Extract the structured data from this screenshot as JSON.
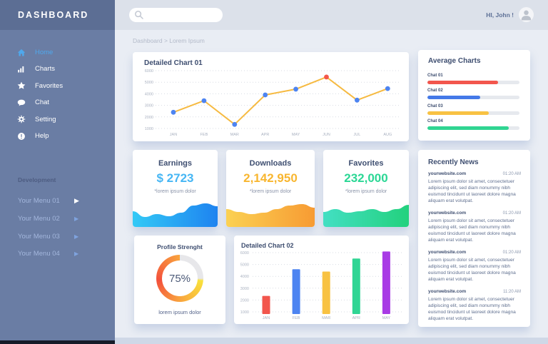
{
  "sidebar": {
    "title": "DASHBOARD",
    "nav": [
      {
        "label": "Home",
        "icon": "home-icon",
        "active": true
      },
      {
        "label": "Charts",
        "icon": "charts-icon",
        "active": false
      },
      {
        "label": "Favorites",
        "icon": "star-icon",
        "active": false
      },
      {
        "label": "Chat",
        "icon": "chat-icon",
        "active": false
      },
      {
        "label": "Setting",
        "icon": "gear-icon",
        "active": false
      },
      {
        "label": "Help",
        "icon": "help-icon",
        "active": false
      }
    ],
    "section_label": "Development",
    "dev_menu": [
      {
        "label": "Your Menu 01"
      },
      {
        "label": "Your Menu 02"
      },
      {
        "label": "Your Menu 03"
      },
      {
        "label": "Your Menu 04"
      }
    ]
  },
  "topbar": {
    "greeting": "HI, John !",
    "search_value": ""
  },
  "breadcrumb": "Dashboard > Lorem Ipsum",
  "cards": {
    "chart01_title": "Detailed Chart 01",
    "average_title": "Average Charts",
    "stats": [
      {
        "title": "Earnings",
        "value": "$ 2723",
        "note": "*lorem ipsum dolor",
        "value_color": "#46B6F4"
      },
      {
        "title": "Downloads",
        "value": "2,142,950",
        "note": "*lorem ipsum dolor",
        "value_color": "#F8B62F"
      },
      {
        "title": "Favorites",
        "value": "232,000",
        "note": "*lorem ipsum dolor",
        "value_color": "#2BD795"
      }
    ],
    "news_title": "Recently News",
    "news": [
      {
        "source": "yourwebsite.com",
        "time": "01:20 AM",
        "body": "Lorem ipsum dolor sit amet, consectetuer adipiscing elit, sed diam nonummy nibh euismod tincidunt ut laoreet dolore magna aliquam erat volutpat."
      },
      {
        "source": "yourwebsite.com",
        "time": "01:20 AM",
        "body": "Lorem ipsum dolor sit amet, consectetuer adipiscing elit, sed diam nonummy nibh euismod tincidunt ut laoreet dolore magna aliquam erat volutpat."
      },
      {
        "source": "yourwebsite.com",
        "time": "01:20 AM",
        "body": "Lorem ipsum dolor sit amet, consectetuer adipiscing elit, sed diam nonummy nibh euismod tincidunt ut laoreet dolore magna aliquam erat volutpat."
      },
      {
        "source": "yourwebsite.com",
        "time": "11:20 AM",
        "body": "Lorem ipsum dolor sit amet, consectetuer adipiscing elit, sed diam nonummy nibh euismod tincidunt ut laoreet dolore magna aliquam erat volutpat."
      }
    ],
    "profile": {
      "title": "Profile Strenght",
      "percent": "75%",
      "note": "lorem ipsum dolor"
    },
    "chart02_title": "Detailed Chart 02"
  },
  "chart_data": [
    {
      "id": "detailed_chart_01",
      "type": "line",
      "title": "Detailed Chart 01",
      "categories": [
        "JAN",
        "FEB",
        "MAR",
        "APR",
        "MAY",
        "JUN",
        "JUL",
        "AUG"
      ],
      "values": [
        2400,
        3400,
        1350,
        3900,
        4400,
        5450,
        3450,
        4450
      ],
      "yticks": [
        6000,
        5000,
        4000,
        3000,
        2000,
        1000
      ],
      "ylim": [
        1000,
        6000
      ],
      "line_color": "#F6BA41",
      "point_color": "#4D84F1",
      "highlight_index": 5,
      "highlight_color": "#F4574A",
      "grid": "dotted",
      "xlabel": "",
      "ylabel": ""
    },
    {
      "id": "average_charts",
      "type": "bar",
      "subtype": "progress",
      "items": [
        {
          "label": "Chat 01",
          "percent": 77,
          "color": "#F2564D"
        },
        {
          "label": "Chat 02",
          "percent": 57,
          "color": "#4479E8"
        },
        {
          "label": "Chat 03",
          "percent": 67,
          "color": "#F8C243"
        },
        {
          "label": "Chat 04",
          "percent": 88,
          "color": "#30D592"
        }
      ]
    },
    {
      "id": "earnings_sparkline",
      "type": "area",
      "values": [
        22,
        14,
        18,
        15,
        20,
        30,
        33,
        29
      ],
      "gradient": [
        "#33C9F6",
        "#1E83F0"
      ]
    },
    {
      "id": "downloads_sparkline",
      "type": "area",
      "values": [
        25,
        21,
        18,
        20,
        25,
        30,
        32,
        27
      ],
      "gradient": [
        "#FBD153",
        "#F79B33"
      ]
    },
    {
      "id": "favorites_sparkline",
      "type": "area",
      "values": [
        21,
        25,
        20,
        22,
        25,
        21,
        25,
        31
      ],
      "gradient": [
        "#43DFC3",
        "#23D17D"
      ]
    },
    {
      "id": "profile_donut",
      "type": "pie",
      "subtype": "donut",
      "percent": 75,
      "arc_colors": [
        "#F3503C",
        "#F9A43E",
        "#F9E23C"
      ],
      "track_color": "#E7E7EA"
    },
    {
      "id": "detailed_chart_02",
      "type": "bar",
      "title": "Detailed Chart 02",
      "categories": [
        "JAN",
        "FEB",
        "MAR",
        "APR",
        "MAY"
      ],
      "values": [
        2350,
        4600,
        4400,
        5500,
        6100
      ],
      "colors": [
        "#F2564D",
        "#4D84F1",
        "#F8C243",
        "#30D594",
        "#A83BE5"
      ],
      "yticks": [
        6000,
        5000,
        4000,
        3000,
        2000,
        1000
      ],
      "ylim": [
        1000,
        6000
      ],
      "grid": "dotted",
      "xlabel": "",
      "ylabel": ""
    }
  ]
}
